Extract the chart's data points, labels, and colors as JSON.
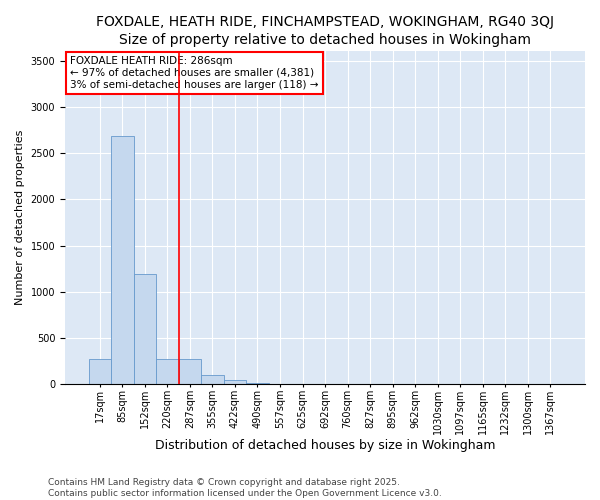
{
  "title": "FOXDALE, HEATH RIDE, FINCHAMPSTEAD, WOKINGHAM, RG40 3QJ",
  "subtitle": "Size of property relative to detached houses in Wokingham",
  "xlabel": "Distribution of detached houses by size in Wokingham",
  "ylabel": "Number of detached properties",
  "categories": [
    "17sqm",
    "85sqm",
    "152sqm",
    "220sqm",
    "287sqm",
    "355sqm",
    "422sqm",
    "490sqm",
    "557sqm",
    "625sqm",
    "692sqm",
    "760sqm",
    "827sqm",
    "895sqm",
    "962sqm",
    "1030sqm",
    "1097sqm",
    "1165sqm",
    "1232sqm",
    "1300sqm",
    "1367sqm"
  ],
  "values": [
    270,
    2680,
    1190,
    270,
    270,
    100,
    50,
    10,
    5,
    2,
    1,
    1,
    0,
    0,
    0,
    0,
    0,
    0,
    0,
    0,
    0
  ],
  "bar_color": "#c5d8ee",
  "bar_edge_color": "#6699cc",
  "red_line_index": 3.5,
  "ylim": [
    0,
    3600
  ],
  "yticks": [
    0,
    500,
    1000,
    1500,
    2000,
    2500,
    3000,
    3500
  ],
  "annotation_text": "FOXDALE HEATH RIDE: 286sqm\n← 97% of detached houses are smaller (4,381)\n3% of semi-detached houses are larger (118) →",
  "bg_color": "#dde8f5",
  "grid_color": "#b8cde0",
  "footer": "Contains HM Land Registry data © Crown copyright and database right 2025.\nContains public sector information licensed under the Open Government Licence v3.0.",
  "title_fontsize": 10,
  "xlabel_fontsize": 9,
  "ylabel_fontsize": 8,
  "tick_fontsize": 7,
  "annotation_fontsize": 7.5
}
